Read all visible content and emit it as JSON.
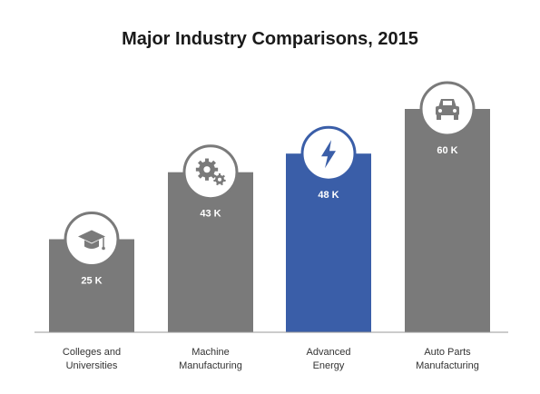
{
  "chart_data": {
    "type": "bar",
    "title": "Major Industry Comparisons, 2015",
    "categories": [
      [
        "Colleges and",
        "Universities"
      ],
      [
        "Machine",
        "Manufacturing"
      ],
      [
        "Advanced",
        "Energy"
      ],
      [
        "Auto Parts",
        "Manufacturing"
      ]
    ],
    "values": [
      25,
      43,
      48,
      60
    ],
    "value_labels": [
      "25 K",
      "43 K",
      "48 K",
      "60 K"
    ],
    "icons": [
      "graduation-cap-icon",
      "gears-icon",
      "lightning-bolt-icon",
      "car-icon"
    ],
    "highlight_index": 2,
    "xlabel": "",
    "ylabel": "",
    "ylim": [
      0,
      60
    ],
    "grid": false,
    "colors": {
      "bar": "#7a7a7a",
      "highlight": "#3a5ea8",
      "axis": "#9a9a9a",
      "icon_ring": "#7a7a7a"
    }
  }
}
